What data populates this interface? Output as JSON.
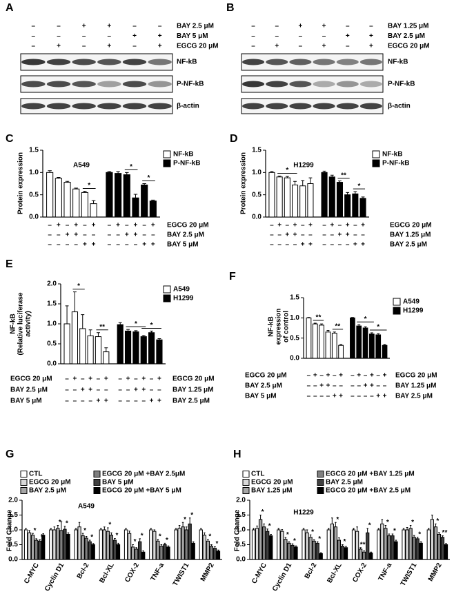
{
  "blots": [
    {
      "label": "A",
      "treatments": [
        {
          "name": "BAY 2.5 μM",
          "signs": [
            "–",
            "–",
            "+",
            "+",
            "–",
            "–"
          ]
        },
        {
          "name": "BAY 5 μM",
          "signs": [
            "–",
            "–",
            "–",
            "–",
            "+",
            "+"
          ]
        },
        {
          "name": "EGCG 20 μM",
          "signs": [
            "–",
            "+",
            "–",
            "+",
            "–",
            "+"
          ]
        }
      ],
      "bands": [
        "NF-kB",
        "P-NF-kB",
        "β-actin"
      ]
    },
    {
      "label": "B",
      "treatments": [
        {
          "name": "BAY 1.25 μM",
          "signs": [
            "–",
            "–",
            "+",
            "+",
            "–",
            "–"
          ]
        },
        {
          "name": "BAY 2.5 μM",
          "signs": [
            "–",
            "–",
            "–",
            "–",
            "+",
            "+"
          ]
        },
        {
          "name": "EGCG 20 μM",
          "signs": [
            "–",
            "+",
            "–",
            "+",
            "–",
            "+"
          ]
        }
      ],
      "bands": [
        "NF-kB",
        "P-NF-kB",
        "β-actin"
      ]
    }
  ],
  "chart_data": [
    {
      "type": "bar",
      "grouping": "series",
      "label": "C",
      "title": "A549",
      "ylabel": [
        "Protein expression"
      ],
      "ylim": [
        0,
        1.5
      ],
      "yticks": [
        {
          "value": 0,
          "label": "0.0"
        },
        0.5,
        {
          "value": 1,
          "label": "1.0"
        },
        1.5
      ],
      "series": [
        {
          "name": "NF-kB",
          "color": "#ffffff",
          "values": [
            1.0,
            0.87,
            0.78,
            0.63,
            0.55,
            0.3
          ],
          "errors": [
            0.04,
            0.02,
            0.02,
            0.02,
            0.03,
            0.07
          ]
        },
        {
          "name": "P-NF-kB",
          "color": "#000000",
          "values": [
            1.0,
            0.98,
            0.95,
            0.43,
            0.72,
            0.36
          ],
          "errors": [
            0.02,
            0.04,
            0.05,
            0.08,
            0.03,
            0.02
          ]
        }
      ],
      "condition_rows": [
        {
          "right": "EGCG 20 μM",
          "signs": [
            "–",
            "+",
            "–",
            "+",
            "–",
            "+",
            "–",
            "+",
            "–",
            "+",
            "–",
            "+"
          ]
        },
        {
          "right": "BAY 2.5 μM",
          "signs": [
            "–",
            "–",
            "+",
            "+",
            "–",
            "–",
            "–",
            "–",
            "+",
            "+",
            "–",
            "–"
          ]
        },
        {
          "right": "BAY 5 μM",
          "signs": [
            "–",
            "–",
            "–",
            "–",
            "+",
            "+",
            "–",
            "–",
            "–",
            "–",
            "+",
            "+"
          ]
        }
      ],
      "significance": [
        "*",
        "*",
        "*"
      ]
    },
    {
      "type": "bar",
      "grouping": "series",
      "label": "D",
      "title": "H1299",
      "ylabel": [
        "Protein expression"
      ],
      "ylim": [
        0,
        1.5
      ],
      "yticks": [
        {
          "value": 0,
          "label": "0.0"
        },
        0.5,
        {
          "value": 1,
          "label": "1.0"
        },
        1.5
      ],
      "series": [
        {
          "name": "NF-kB",
          "color": "#ffffff",
          "values": [
            1.0,
            0.9,
            0.88,
            0.72,
            0.7,
            0.75
          ],
          "errors": [
            0.02,
            0.02,
            0.03,
            0.08,
            0.12,
            0.13
          ]
        },
        {
          "name": "P-NF-kB",
          "color": "#000000",
          "values": [
            1.0,
            0.9,
            0.78,
            0.5,
            0.52,
            0.42
          ],
          "errors": [
            0.03,
            0.04,
            0.03,
            0.05,
            0.05,
            0.03
          ]
        }
      ],
      "condition_rows": [
        {
          "right": "EGCG 20 μM",
          "signs": [
            "–",
            "+",
            "–",
            "+",
            "–",
            "+",
            "–",
            "+",
            "–",
            "+",
            "–",
            "+"
          ]
        },
        {
          "right": "BAY 1.25 μM",
          "signs": [
            "–",
            "–",
            "+",
            "+",
            "–",
            "–",
            "–",
            "–",
            "+",
            "+",
            "–",
            "–"
          ]
        },
        {
          "right": "BAY 2.5 μM",
          "signs": [
            "–",
            "–",
            "–",
            "–",
            "+",
            "+",
            "–",
            "–",
            "–",
            "–",
            "+",
            "+"
          ]
        }
      ],
      "significance": [
        "*",
        "**",
        "*"
      ]
    },
    {
      "type": "bar",
      "grouping": "series",
      "label": "E",
      "ylabel": [
        "NF-kB",
        "(Relative luciferase",
        "activity)"
      ],
      "ylim": [
        0,
        2
      ],
      "yticks": [
        {
          "value": 0,
          "label": "0.0"
        },
        0.5,
        {
          "value": 1,
          "label": "1.0"
        },
        1.5,
        {
          "value": 2,
          "label": "2.0"
        }
      ],
      "series": [
        {
          "name": "A549",
          "color": "#ffffff",
          "values": [
            1.0,
            1.3,
            0.88,
            0.7,
            0.68,
            0.3
          ],
          "errors": [
            0.45,
            0.5,
            0.35,
            0.15,
            0.1,
            0.1
          ]
        },
        {
          "name": "H1299",
          "color": "#000000",
          "values": [
            0.98,
            0.82,
            0.8,
            0.68,
            0.78,
            0.6
          ],
          "errors": [
            0.05,
            0.04,
            0.03,
            0.03,
            0.04,
            0.03
          ]
        }
      ],
      "condition_rows": [
        {
          "left": "EGCG 20 μM",
          "right": "EGCG 20 μM",
          "signs": [
            "–",
            "+",
            "–",
            "+",
            "–",
            "+",
            "–",
            "+",
            "–",
            "+",
            "–",
            "+"
          ]
        },
        {
          "left": "BAY 2.5 μM",
          "right": "BAY 1.25 μM",
          "signs": [
            "–",
            "–",
            "+",
            "+",
            "–",
            "–",
            "–",
            "–",
            "+",
            "+",
            "–",
            "–"
          ]
        },
        {
          "left": "BAY 5 μM",
          "right": "BAY 2.5 μM",
          "signs": [
            "–",
            "–",
            "–",
            "–",
            "+",
            "+",
            "–",
            "–",
            "–",
            "–",
            "+",
            "+"
          ]
        }
      ],
      "significance": [
        "*",
        "**",
        "*",
        "*"
      ]
    },
    {
      "type": "bar",
      "grouping": "series",
      "label": "F",
      "ylabel": [
        "NF-kB",
        "expression",
        "of control"
      ],
      "ylim": [
        0,
        1.5
      ],
      "yticks": [
        {
          "value": 0,
          "label": "0.0"
        },
        0.5,
        {
          "value": 1,
          "label": "1.0"
        },
        1.5
      ],
      "series": [
        {
          "name": "A549",
          "color": "#ffffff",
          "values": [
            1.0,
            0.85,
            0.82,
            0.65,
            0.62,
            0.32
          ],
          "errors": [
            0.01,
            0.02,
            0.03,
            0.04,
            0.03,
            0.02
          ]
        },
        {
          "name": "H1299",
          "color": "#000000",
          "values": [
            1.0,
            0.8,
            0.75,
            0.6,
            0.58,
            0.32
          ],
          "errors": [
            0.01,
            0.03,
            0.03,
            0.03,
            0.03,
            0.02
          ]
        }
      ],
      "condition_rows": [
        {
          "left": "EGCG 20 μM",
          "right": "EGCG 20 μM",
          "signs": [
            "–",
            "+",
            "–",
            "+",
            "–",
            "+",
            "–",
            "+",
            "–",
            "+",
            "–",
            "+"
          ]
        },
        {
          "left": "BAY 2.5 μM",
          "right": "BAY 1.25 μM",
          "signs": [
            "–",
            "–",
            "+",
            "+",
            "–",
            "–",
            "–",
            "–",
            "+",
            "+",
            "–",
            "–"
          ]
        },
        {
          "left": "BAY 5 μM",
          "right": "BAY 2.5 μM",
          "signs": [
            "–",
            "–",
            "–",
            "–",
            "+",
            "+",
            "–",
            "–",
            "–",
            "–",
            "+",
            "+"
          ]
        }
      ],
      "significance": [
        "**",
        "**",
        "*",
        "*"
      ]
    },
    {
      "type": "bar",
      "grouping": "category",
      "label": "G",
      "title": "A549",
      "ylabel": [
        "Fold Change"
      ],
      "ylim": [
        0,
        2
      ],
      "yticks": [
        {
          "value": 0,
          "label": "0.0"
        },
        0.5,
        {
          "value": 1,
          "label": "1.0"
        },
        1.5,
        {
          "value": 2,
          "label": "2.0"
        }
      ],
      "categories": [
        "C-MYC",
        "Cyclin D1",
        "Bcl-2",
        "Bcl-XL",
        "COX-2",
        "TNF-a",
        "TWIST1",
        "MMP2"
      ],
      "series": [
        {
          "name": "CTL",
          "color": "#ffffff",
          "values": [
            1.0,
            1.0,
            1.0,
            1.0,
            1.0,
            1.0,
            1.0,
            1.0
          ],
          "errors": [
            0.05,
            0.05,
            0.05,
            0.05,
            0.05,
            0.05,
            0.05,
            0.05
          ]
        },
        {
          "name": "EGCG 20 μM",
          "color": "#d9d9d9",
          "values": [
            0.9,
            1.0,
            1.1,
            1.0,
            0.88,
            0.95,
            1.05,
            0.82
          ],
          "errors": [
            0.08,
            0.1,
            0.15,
            0.1,
            0.08,
            0.05,
            0.1,
            0.08
          ]
        },
        {
          "name": "BAY 2.5 μM",
          "color": "#a6a6a6",
          "values": [
            0.82,
            1.05,
            0.8,
            0.95,
            0.42,
            0.62,
            1.1,
            0.62
          ],
          "errors": [
            0.06,
            0.1,
            0.08,
            0.12,
            0.08,
            0.06,
            0.15,
            0.06
          ]
        },
        {
          "name": "EGCG 20 μM +BAY 2.5μM",
          "color": "#7f7f7f",
          "values": [
            0.65,
            0.98,
            0.72,
            0.82,
            0.35,
            0.45,
            1.0,
            0.45
          ],
          "errors": [
            0.05,
            0.3,
            0.06,
            0.08,
            0.05,
            0.05,
            0.1,
            0.05
          ]
        },
        {
          "name": "BAY 5 μM",
          "color": "#404040",
          "values": [
            0.62,
            1.02,
            0.6,
            0.65,
            0.6,
            0.5,
            1.2,
            0.38
          ],
          "errors": [
            0.05,
            0.1,
            0.05,
            0.06,
            0.1,
            0.05,
            0.2,
            0.05
          ]
        },
        {
          "name": "EGCG 20 μM +BAY 5 μM",
          "color": "#000000",
          "values": [
            0.82,
            0.85,
            0.5,
            0.5,
            0.25,
            0.42,
            0.55,
            0.28
          ],
          "errors": [
            0.05,
            0.05,
            0.04,
            0.05,
            0.04,
            0.04,
            0.05,
            0.04
          ]
        }
      ],
      "significance": [
        "*",
        "*",
        "*",
        "*",
        "*",
        "*",
        "*",
        "*",
        "*",
        "*",
        "*",
        "*",
        "*",
        "*",
        "*",
        "*"
      ]
    },
    {
      "type": "bar",
      "grouping": "category",
      "label": "H",
      "title": "H1229",
      "ylabel": [
        "Fold Change"
      ],
      "ylim": [
        0,
        2
      ],
      "yticks": [
        {
          "value": 0,
          "label": "0.0"
        },
        0.5,
        {
          "value": 1,
          "label": "1.0"
        },
        1.5,
        {
          "value": 2,
          "label": "2.0"
        }
      ],
      "categories": [
        "C-MYC",
        "Cyclin D1",
        "Bcl-2",
        "Bcl-XL",
        "COX-2",
        "TNF-a",
        "TWIST1",
        "MMP2"
      ],
      "series": [
        {
          "name": "CTL",
          "color": "#ffffff",
          "values": [
            1.0,
            1.0,
            1.0,
            1.0,
            1.0,
            1.0,
            1.0,
            1.0
          ],
          "errors": [
            0.05,
            0.05,
            0.05,
            0.05,
            0.05,
            0.05,
            0.05,
            0.05
          ]
        },
        {
          "name": "EGCG 20 μM",
          "color": "#d9d9d9",
          "values": [
            1.05,
            0.95,
            0.9,
            1.2,
            0.95,
            1.2,
            1.0,
            1.35
          ],
          "errors": [
            0.08,
            0.06,
            0.1,
            0.2,
            0.15,
            0.15,
            0.08,
            0.15
          ]
        },
        {
          "name": "BAY 1.25 μM",
          "color": "#a6a6a6",
          "values": [
            1.35,
            0.68,
            0.75,
            1.1,
            0.35,
            1.05,
            1.05,
            1.1
          ],
          "errors": [
            0.15,
            0.06,
            0.08,
            0.15,
            0.05,
            0.1,
            0.1,
            0.1
          ]
        },
        {
          "name": "EGCG 20 μM +BAY 1.25 μM",
          "color": "#7f7f7f",
          "values": [
            1.1,
            0.55,
            0.62,
            0.65,
            0.25,
            0.8,
            0.75,
            0.85
          ],
          "errors": [
            0.1,
            0.05,
            0.05,
            0.08,
            0.04,
            0.06,
            0.06,
            0.06
          ]
        },
        {
          "name": "BAY  2.5 μM",
          "color": "#404040",
          "values": [
            0.95,
            0.48,
            0.55,
            0.45,
            0.9,
            0.8,
            0.7,
            0.75
          ],
          "errors": [
            0.08,
            0.05,
            0.05,
            0.05,
            0.15,
            0.06,
            0.05,
            0.05
          ]
        },
        {
          "name": "EGCG 20 μM +BAY 2.5 μM",
          "color": "#000000",
          "values": [
            0.8,
            0.42,
            0.2,
            0.4,
            0.22,
            0.6,
            0.55,
            0.5
          ],
          "errors": [
            0.05,
            0.04,
            0.03,
            0.04,
            0.03,
            0.05,
            0.05,
            0.04
          ]
        }
      ],
      "significance": [
        "*",
        "*",
        "*",
        "*",
        "*",
        "*",
        "*",
        "*",
        "**",
        "*",
        "*",
        "*",
        "*",
        "*",
        "*",
        "**"
      ]
    }
  ]
}
